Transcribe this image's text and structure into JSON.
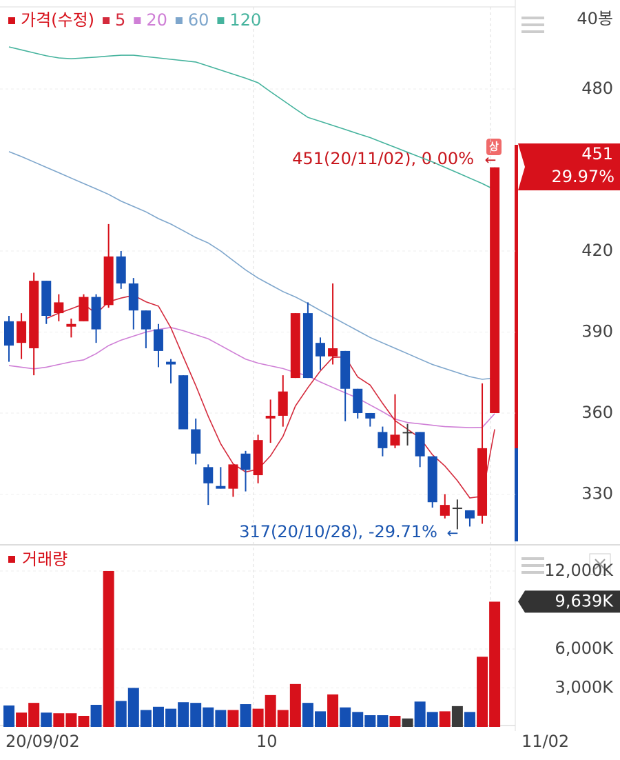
{
  "chart_data": {
    "type": "candlestick",
    "period_label": "40봉",
    "price_name": "가격(수정)",
    "volume_name": "거래량",
    "up_color": "#d7111b",
    "down_color": "#1450b4",
    "flat_color": "#3a3a3a",
    "categories": [
      "20/09/02",
      null,
      null,
      null,
      null,
      null,
      null,
      null,
      null,
      null,
      null,
      null,
      null,
      null,
      null,
      null,
      null,
      null,
      null,
      null,
      "10",
      null,
      null,
      null,
      null,
      null,
      null,
      null,
      null,
      null,
      null,
      null,
      null,
      null,
      null,
      null,
      null,
      null,
      null,
      "11/02"
    ],
    "open": [
      394,
      386,
      384,
      409,
      397,
      392,
      394,
      403,
      400,
      418,
      408,
      398,
      391,
      379,
      374,
      354,
      340,
      333,
      332,
      345,
      337,
      358,
      359,
      373,
      397,
      386,
      381,
      383,
      369,
      360,
      353,
      348,
      353,
      353,
      344,
      322,
      325,
      324,
      322,
      360
    ],
    "high": [
      396,
      397,
      412,
      409,
      404,
      395,
      404,
      404,
      430,
      420,
      410,
      398,
      393,
      380,
      374,
      358,
      341,
      340,
      341,
      346,
      352,
      365,
      374,
      397,
      401,
      388,
      408,
      383,
      369,
      360,
      355,
      367,
      356,
      353,
      344,
      330,
      328,
      324,
      371,
      451
    ],
    "low": [
      379,
      380,
      374,
      393,
      394,
      388,
      394,
      386,
      399,
      406,
      391,
      384,
      377,
      371,
      354,
      341,
      326,
      332,
      329,
      331,
      334,
      349,
      355,
      373,
      373,
      376,
      378,
      357,
      358,
      355,
      344,
      347,
      348,
      340,
      325,
      321,
      317,
      318,
      319,
      360
    ],
    "close": [
      385,
      394,
      409,
      396,
      401,
      393,
      403,
      391,
      418,
      408,
      398,
      391,
      383,
      378,
      354,
      345,
      334,
      332,
      341,
      339,
      350,
      359,
      368,
      397,
      373,
      381,
      384,
      369,
      360,
      358,
      347,
      352,
      353,
      344,
      327,
      326,
      325,
      321,
      347,
      451
    ],
    "volume": [
      1650,
      1100,
      1850,
      1100,
      1050,
      1050,
      850,
      1700,
      12000,
      2000,
      3000,
      1300,
      1550,
      1400,
      1900,
      1850,
      1500,
      1300,
      1300,
      1750,
      1400,
      2450,
      1300,
      3300,
      1850,
      1200,
      2500,
      1500,
      1150,
      900,
      900,
      850,
      650,
      1950,
      1150,
      1200,
      1600,
      1150,
      5400,
      9639
    ],
    "ma_series": [
      {
        "name": "5",
        "color": "#d42a3c",
        "values": [
          null,
          null,
          null,
          395,
          397,
          398.6,
          400.4,
          396.8,
          401.2,
          402.6,
          403.6,
          401.2,
          399.6,
          391.6,
          380.8,
          370.2,
          358.8,
          348.6,
          341.2,
          338.2,
          339.2,
          344.2,
          351.4,
          362.6,
          369.4,
          375.6,
          380.6,
          380.8,
          373.4,
          370.4,
          363.6,
          357.2,
          354,
          350.8,
          344.6,
          340.4,
          335,
          328.6,
          329.2,
          354
        ]
      },
      {
        "name": "20",
        "color": "#cf7fd6",
        "values": [
          377.6,
          377,
          376.4,
          377,
          378,
          379,
          379.7,
          382,
          385,
          387,
          388.5,
          390,
          391,
          391.7,
          390.5,
          389,
          387.5,
          385,
          382.5,
          380,
          378.5,
          377.5,
          376.5,
          375,
          373.8,
          371.5,
          369.5,
          367.5,
          365.5,
          363,
          360.5,
          357.8,
          356.5,
          356,
          355.5,
          355,
          354.8,
          354.6,
          354.7,
          359.8
        ]
      },
      {
        "name": "60",
        "color": "#7ea6cc",
        "values": [
          456.8,
          455,
          453,
          451,
          449,
          447,
          445,
          443,
          441,
          438.5,
          436.5,
          434.5,
          432,
          430,
          427.5,
          425,
          423,
          420,
          416.5,
          413,
          410,
          407.5,
          405,
          403,
          400.6,
          398,
          395.5,
          393,
          390.5,
          388,
          386,
          384,
          382,
          380,
          378,
          376.5,
          375,
          373.5,
          372.5,
          373
        ]
      },
      {
        "name": "120",
        "color": "#45b39d",
        "values": [
          495.6,
          494.5,
          493.4,
          492.3,
          491.5,
          491.2,
          491.5,
          491.8,
          492.2,
          492.5,
          492.5,
          492,
          491.5,
          491,
          490.5,
          490,
          488.5,
          487,
          485.5,
          484,
          482.3,
          479,
          475.8,
          472.6,
          469.5,
          468,
          466.5,
          465,
          463.5,
          462,
          460.2,
          458.4,
          456.6,
          454.8,
          453,
          451,
          449,
          447,
          445,
          442.7
        ]
      }
    ],
    "ylim": [
      312.5,
      510.4
    ],
    "yticks": [
      330,
      360,
      390,
      420,
      480
    ],
    "vol_ylim": [
      0,
      13750
    ],
    "vol_yticks": [
      {
        "value": 3000,
        "label": "3,000K"
      },
      {
        "value": 6000,
        "label": "6,000K"
      },
      {
        "value": 12000,
        "label": "12,000K"
      }
    ],
    "high_annotation": "451(20/11/02), 0.00%",
    "low_annotation": "317(20/10/28), -29.71%",
    "arrow": "←",
    "limit_badge": "상",
    "price_change_label": "29.97%",
    "volume_last_label": "9,639K",
    "grid": true
  }
}
